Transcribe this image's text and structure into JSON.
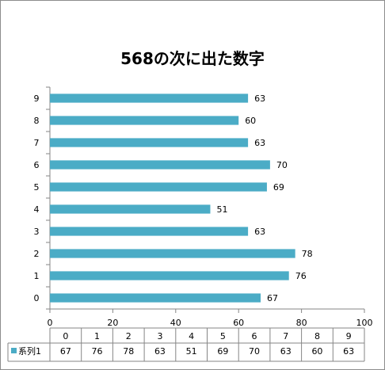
{
  "chart_data": {
    "type": "bar",
    "orientation": "horizontal",
    "title": "568の次に出た数字",
    "categories": [
      "0",
      "1",
      "2",
      "3",
      "4",
      "5",
      "6",
      "7",
      "8",
      "9"
    ],
    "series": [
      {
        "name": "系列1",
        "values": [
          67,
          76,
          78,
          63,
          51,
          69,
          70,
          63,
          60,
          63
        ],
        "color": "#4BACC6"
      }
    ],
    "xlabel": "",
    "ylabel": "",
    "xlim": [
      0,
      100
    ],
    "xticks": [
      "0",
      "20",
      "40",
      "60",
      "80",
      "100"
    ],
    "grid": false,
    "legend": "data-table",
    "data_labels": true,
    "data_table": true
  }
}
